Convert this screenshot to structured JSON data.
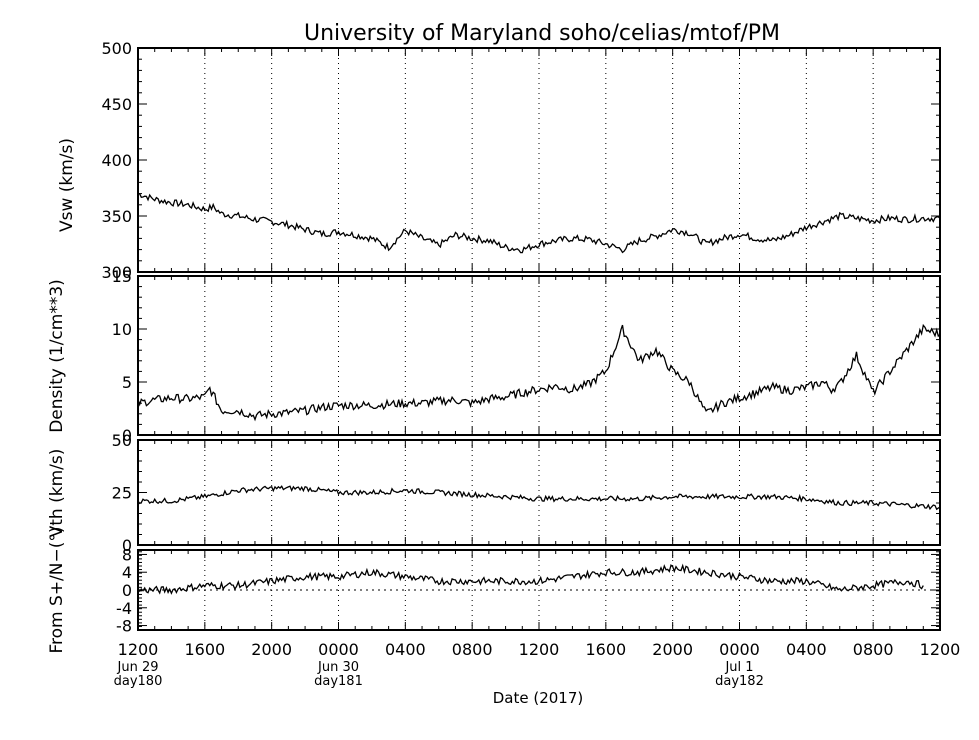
{
  "title": "University of Maryland  soho/celias/mtof/PM",
  "xaxis": {
    "label": "Date (2017)",
    "ticks": [
      "1200",
      "1600",
      "2000",
      "0000",
      "0400",
      "0800",
      "1200",
      "1600",
      "2000",
      "0000",
      "0400",
      "0800",
      "1200"
    ],
    "day_labels": [
      {
        "date": "Jun 29",
        "day": "day180",
        "tick": 0
      },
      {
        "date": "Jun 30",
        "day": "day181",
        "tick": 3
      },
      {
        "date": "Jul 1",
        "day": "day182",
        "tick": 9
      }
    ]
  },
  "chart_data": [
    {
      "type": "line",
      "panel": "Vsw",
      "ylabel": "Vsw (km/s)",
      "ylim": [
        300,
        500
      ],
      "yticks": [
        300,
        350,
        400,
        450,
        500
      ],
      "x_units": "hours since 2017-06-29 12:00 UT",
      "xlim": [
        0,
        48
      ],
      "grid": "vertical dotted every 4 h",
      "series": [
        {
          "x": [
            0,
            1,
            2,
            3,
            4,
            4.5,
            5,
            6,
            7,
            8,
            9,
            10,
            11,
            12,
            13,
            14,
            15,
            16,
            17,
            18,
            19,
            20,
            21,
            22,
            23,
            24,
            25,
            26,
            27,
            28,
            29,
            30,
            31,
            32,
            33,
            34,
            35,
            36,
            37,
            38,
            39,
            40,
            41,
            42,
            43,
            44,
            45,
            46,
            47,
            48
          ],
          "values": [
            370,
            365,
            362,
            360,
            356,
            358,
            352,
            350,
            347,
            345,
            342,
            338,
            334,
            336,
            333,
            330,
            322,
            337,
            330,
            324,
            333,
            330,
            328,
            322,
            320,
            325,
            328,
            330,
            329,
            325,
            320,
            328,
            332,
            338,
            335,
            325,
            330,
            334,
            330,
            328,
            333,
            340,
            345,
            350,
            348,
            346,
            348,
            347,
            348,
            348
          ]
        }
      ]
    },
    {
      "type": "line",
      "panel": "Density",
      "ylabel": "Density (1/cm**3)",
      "ylim": [
        0,
        15
      ],
      "yticks": [
        0,
        5,
        10,
        15
      ],
      "x_units": "hours since 2017-06-29 12:00 UT",
      "xlim": [
        0,
        48
      ],
      "series": [
        {
          "x": [
            0,
            1,
            2,
            3,
            4,
            4.3,
            4.6,
            5,
            6,
            7,
            8,
            9,
            10,
            11,
            12,
            13,
            14,
            15,
            16,
            17,
            18,
            19,
            20,
            21,
            22,
            23,
            24,
            25,
            26,
            27,
            28,
            29,
            30,
            31,
            32,
            33,
            34,
            35,
            36,
            37,
            38,
            39,
            40,
            41,
            41.5,
            42,
            43,
            44,
            45,
            46,
            47,
            48
          ],
          "values": [
            3.0,
            3.3,
            3.5,
            3.4,
            3.6,
            4.4,
            3.5,
            2.3,
            2.3,
            1.8,
            2.0,
            2.1,
            2.3,
            2.6,
            2.8,
            2.8,
            2.8,
            2.9,
            3.0,
            3.0,
            3.2,
            3.3,
            3.0,
            3.4,
            3.6,
            4.0,
            4.3,
            4.6,
            4.3,
            4.8,
            6.0,
            10.0,
            7.0,
            8.0,
            6.0,
            5.0,
            2.0,
            3.0,
            3.5,
            4.0,
            4.5,
            4.2,
            4.5,
            5.0,
            4.3,
            4.8,
            7.5,
            4.0,
            6.0,
            8.0,
            10.0,
            9.5
          ]
        }
      ]
    },
    {
      "type": "line",
      "panel": "Vth",
      "ylabel": "Vth (km/s)",
      "ylim": [
        0,
        50
      ],
      "yticks": [
        0,
        25,
        50
      ],
      "x_units": "hours since 2017-06-29 12:00 UT",
      "xlim": [
        0,
        48
      ],
      "series": [
        {
          "x": [
            0,
            2,
            4,
            6,
            8,
            10,
            12,
            14,
            16,
            18,
            20,
            22,
            24,
            26,
            28,
            30,
            32,
            34,
            36,
            38,
            40,
            42,
            44,
            46,
            48
          ],
          "values": [
            21,
            21,
            23,
            26,
            27,
            27,
            25,
            25,
            26,
            25,
            24,
            23,
            22,
            22,
            22,
            22,
            23,
            23,
            23,
            23,
            22,
            20,
            20,
            19,
            18
          ]
        }
      ]
    },
    {
      "type": "line",
      "panel": "From S+/N-",
      "ylabel": "From S+/N−(°)",
      "ylim": [
        -9,
        9
      ],
      "yticks": [
        -8,
        -4,
        0,
        4,
        8
      ],
      "reference_line": {
        "y": 0,
        "style": "dotted"
      },
      "x_units": "hours since 2017-06-29 12:00 UT",
      "xlim": [
        0,
        48
      ],
      "series": [
        {
          "x": [
            0,
            2,
            4,
            6,
            8,
            10,
            12,
            14,
            16,
            18,
            20,
            22,
            24,
            26,
            28,
            30,
            32,
            34,
            36,
            38,
            40,
            41,
            42,
            44,
            46,
            47
          ],
          "values": [
            0,
            0,
            1,
            1,
            2,
            3,
            3,
            4,
            3,
            2,
            2,
            2,
            2,
            3,
            4,
            4,
            5,
            4,
            3,
            2,
            2,
            1,
            0,
            1,
            2,
            1
          ]
        }
      ]
    }
  ]
}
